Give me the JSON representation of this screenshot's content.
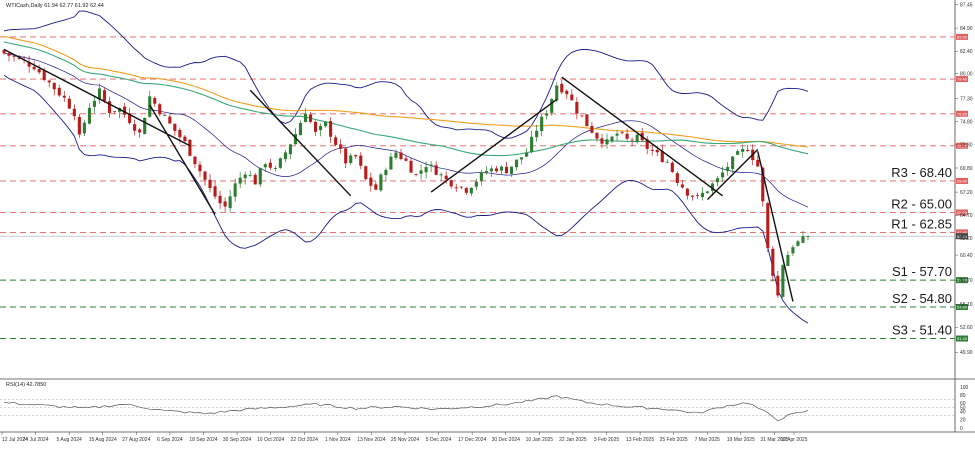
{
  "header": {
    "symbol_line": "WTICash,Daily  61.94 62.77 61.92 62.44",
    "rsi_label": "RSI(14) 42.7850"
  },
  "colors": {
    "bull": "#2e7d32",
    "bear": "#b71c1c",
    "level_line": "#e06060",
    "support_line": "#2e7d32",
    "bollinger": "#1a1a8c",
    "ma_long": "#f0a020",
    "ma_mid": "#3aa878",
    "trend": "#111111",
    "rsi_line": "#555555"
  },
  "levels": [
    {
      "id": "r_top",
      "price": 83.95,
      "tag": "83.95",
      "label": "",
      "kind": "resistance"
    },
    {
      "id": "r_79",
      "price": 79.4,
      "tag": "79.40",
      "label": "",
      "kind": "resistance"
    },
    {
      "id": "r_75",
      "price": 75.65,
      "tag": "75.65",
      "label": "",
      "kind": "resistance"
    },
    {
      "id": "r_72",
      "price": 72.2,
      "tag": "72.20",
      "label": "",
      "kind": "resistance"
    },
    {
      "id": "r3",
      "price": 68.4,
      "tag": "68.40",
      "label": "R3 - 68.40",
      "kind": "resistance"
    },
    {
      "id": "r2",
      "price": 65.0,
      "tag": "65.00",
      "label": "R2 - 65.00",
      "kind": "resistance"
    },
    {
      "id": "r1",
      "price": 62.85,
      "tag": "62.85",
      "label": "R1 - 62.85",
      "kind": "resistance"
    },
    {
      "id": "s1",
      "price": 57.7,
      "tag": "57.70",
      "label": "S1 - 57.70",
      "kind": "support"
    },
    {
      "id": "s2",
      "price": 54.8,
      "tag": "54.80",
      "label": "S2 - 54.80",
      "kind": "support"
    },
    {
      "id": "s3",
      "price": 51.4,
      "tag": "51.40",
      "label": "S3 - 51.40",
      "kind": "support"
    }
  ],
  "current_price_tag": "62.44",
  "chart_data": {
    "type": "candlestick",
    "price_axis": {
      "ylim": [
        48.0,
        87.5
      ],
      "ticks": [
        "87.45",
        "84.90",
        "82.40",
        "80.00",
        "77.30",
        "74.80",
        "72.30",
        "69.80",
        "67.20",
        "64.70",
        "62.20",
        "60.40",
        "57.70",
        "55.10",
        "52.60",
        "49.90"
      ]
    },
    "rsi_axis": {
      "ylim": [
        0,
        100
      ],
      "ticks": [
        "100",
        "80",
        "60",
        "50",
        "40",
        "20",
        "0"
      ]
    },
    "x_ticks": [
      "12 Jul 2024",
      "24 Jul 2024",
      "5 Aug 2024",
      "15 Aug 2024",
      "27 Aug 2024",
      "6 Sep 2024",
      "18 Sep 2024",
      "30 Sep 2024",
      "10 Oct 2024",
      "22 Oct 2024",
      "1 Nov 2024",
      "13 Nov 2024",
      "25 Nov 2024",
      "5 Dec 2024",
      "17 Dec 2024",
      "30 Dec 2024",
      "10 Jan 2025",
      "22 Jan 2025",
      "3 Feb 2025",
      "13 Feb 2025",
      "25 Feb 2025",
      "7 Mar 2025",
      "19 Mar 2025",
      "31 Mar 2025",
      "10 Apr 2025"
    ],
    "close_path": [
      [
        0,
        82.2
      ],
      [
        3,
        81.5
      ],
      [
        6,
        80.8
      ],
      [
        9,
        79.0
      ],
      [
        12,
        77.3
      ],
      [
        14,
        75.8
      ],
      [
        15,
        73.0
      ],
      [
        17,
        76.5
      ],
      [
        19,
        78.0
      ],
      [
        21,
        76.0
      ],
      [
        23,
        76.2
      ],
      [
        25,
        75.0
      ],
      [
        27,
        73.5
      ],
      [
        29,
        77.5
      ],
      [
        31,
        76.0
      ],
      [
        33,
        74.5
      ],
      [
        36,
        72.5
      ],
      [
        39,
        69.5
      ],
      [
        41,
        67.5
      ],
      [
        43,
        66.0
      ],
      [
        44,
        65.6
      ],
      [
        46,
        68.0
      ],
      [
        48,
        69.5
      ],
      [
        50,
        68.3
      ],
      [
        52,
        70.5
      ],
      [
        54,
        69.5
      ],
      [
        56,
        71.5
      ],
      [
        58,
        73.5
      ],
      [
        60,
        76.0
      ],
      [
        62,
        73.5
      ],
      [
        64,
        74.5
      ],
      [
        66,
        72.5
      ],
      [
        68,
        70.5
      ],
      [
        70,
        71.0
      ],
      [
        72,
        68.5
      ],
      [
        74,
        67.5
      ],
      [
        76,
        70.0
      ],
      [
        78,
        71.5
      ],
      [
        80,
        70.5
      ],
      [
        82,
        69.0
      ],
      [
        84,
        70.2
      ],
      [
        86,
        69.5
      ],
      [
        88,
        68.5
      ],
      [
        90,
        68.0
      ],
      [
        92,
        67.5
      ],
      [
        94,
        68.5
      ],
      [
        96,
        69.5
      ],
      [
        98,
        69.8
      ],
      [
        100,
        69.6
      ],
      [
        102,
        70.5
      ],
      [
        104,
        71.5
      ],
      [
        106,
        74.0
      ],
      [
        108,
        76.0
      ],
      [
        110,
        78.8
      ],
      [
        112,
        78.0
      ],
      [
        114,
        76.0
      ],
      [
        116,
        74.5
      ],
      [
        118,
        73.2
      ],
      [
        120,
        72.5
      ],
      [
        122,
        73.5
      ],
      [
        124,
        72.8
      ],
      [
        126,
        73.0
      ],
      [
        128,
        72.0
      ],
      [
        130,
        71.2
      ],
      [
        132,
        70.5
      ],
      [
        134,
        68.5
      ],
      [
        136,
        67.2
      ],
      [
        138,
        66.5
      ],
      [
        140,
        67.5
      ],
      [
        142,
        68.5
      ],
      [
        144,
        70.0
      ],
      [
        146,
        71.2
      ],
      [
        148,
        72.0
      ],
      [
        150,
        70.0
      ],
      [
        151,
        66.0
      ],
      [
        152,
        61.0
      ],
      [
        153,
        58.5
      ],
      [
        154,
        56.0
      ],
      [
        155,
        59.5
      ],
      [
        157,
        61.5
      ],
      [
        159,
        62.0
      ],
      [
        160,
        62.44
      ]
    ],
    "n_candles": 161,
    "rsi_path": [
      [
        0,
        62
      ],
      [
        8,
        55
      ],
      [
        16,
        48
      ],
      [
        24,
        58
      ],
      [
        32,
        42
      ],
      [
        40,
        35
      ],
      [
        48,
        45
      ],
      [
        56,
        52
      ],
      [
        62,
        58
      ],
      [
        70,
        48
      ],
      [
        78,
        52
      ],
      [
        86,
        46
      ],
      [
        94,
        52
      ],
      [
        100,
        58
      ],
      [
        106,
        68
      ],
      [
        110,
        78
      ],
      [
        116,
        62
      ],
      [
        124,
        52
      ],
      [
        132,
        46
      ],
      [
        138,
        36
      ],
      [
        144,
        55
      ],
      [
        148,
        62
      ],
      [
        152,
        35
      ],
      [
        154,
        20
      ],
      [
        156,
        30
      ],
      [
        160,
        42.79
      ]
    ],
    "trend_lines": [
      {
        "from": [
          0,
          82.6
        ],
        "to": [
          37,
          72.2
        ]
      },
      {
        "from": [
          29,
          76.6
        ],
        "to": [
          42,
          64.8
        ]
      },
      {
        "from": [
          49,
          78.2
        ],
        "to": [
          69,
          66.8
        ]
      },
      {
        "from": [
          85,
          67.2
        ],
        "to": [
          110,
          77.2
        ]
      },
      {
        "from": [
          111,
          79.6
        ],
        "to": [
          143,
          66.8
        ]
      },
      {
        "from": [
          140,
          66.4
        ],
        "to": [
          150,
          71.8
        ]
      },
      {
        "from": [
          150,
          71.6
        ],
        "to": [
          157,
          55.4
        ]
      }
    ]
  }
}
